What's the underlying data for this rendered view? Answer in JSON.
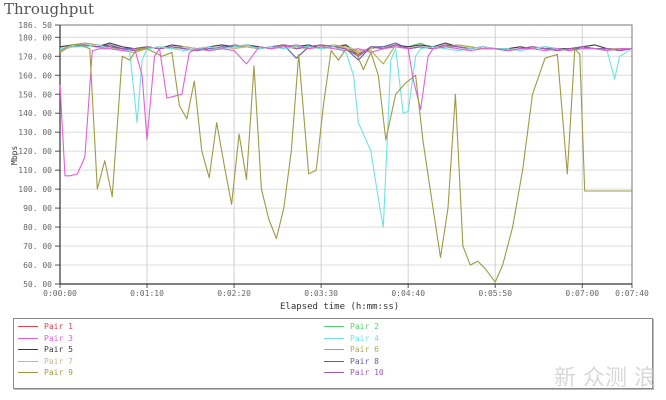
{
  "title": "Throughput",
  "watermark": "新 众测 浪",
  "chart_data": {
    "type": "line",
    "title": "Throughput",
    "xlabel": "Elapsed time (h:mm:ss)",
    "ylabel": "Mbps",
    "ylim": [
      50,
      186.5
    ],
    "xlim_seconds": [
      0,
      460
    ],
    "grid": true,
    "legend_position": "bottom",
    "y_ticks": [
      "186.50",
      "180.00",
      "170.00",
      "160.00",
      "150.00",
      "140.00",
      "130.00",
      "120.00",
      "110.00",
      "100.00",
      "90.00",
      "80.00",
      "70.00",
      "60.00",
      "50.00"
    ],
    "x_ticks": [
      {
        "label": "0:00:00",
        "t": 0
      },
      {
        "label": "0:01:10",
        "t": 70
      },
      {
        "label": "0:02:20",
        "t": 140
      },
      {
        "label": "0:03:30",
        "t": 210
      },
      {
        "label": "0:04:40",
        "t": 280
      },
      {
        "label": "0:05:50",
        "t": 350
      },
      {
        "label": "0:07:00",
        "t": 420
      },
      {
        "label": "0:07:40",
        "t": 460
      }
    ],
    "series": [
      {
        "name": "Pair 1",
        "color": "#d9434f",
        "t": [
          0,
          10,
          20,
          30,
          40,
          50,
          60,
          70,
          80,
          90,
          100,
          110,
          120,
          130,
          140,
          150,
          160,
          170,
          180,
          190,
          200,
          210,
          220,
          230,
          240,
          250,
          260,
          270,
          280,
          290,
          300,
          310,
          320,
          330,
          340,
          350,
          360,
          370,
          380,
          390,
          400,
          410,
          420,
          430,
          440,
          450,
          460
        ],
        "values": [
          174,
          175,
          176,
          175,
          176,
          174,
          173,
          175,
          174,
          175,
          174,
          173,
          175,
          174,
          176,
          175,
          174,
          175,
          176,
          174,
          175,
          176,
          175,
          174,
          171,
          175,
          174,
          176,
          174,
          175,
          174,
          176,
          175,
          174,
          175,
          174,
          173,
          174,
          175,
          174,
          173,
          174,
          175,
          174,
          174,
          173,
          174
        ]
      },
      {
        "name": "Pair 2",
        "color": "#55d66a",
        "t": [
          0,
          10,
          20,
          30,
          40,
          50,
          60,
          70,
          80,
          90,
          100,
          110,
          120,
          130,
          140,
          150,
          160,
          170,
          180,
          190,
          200,
          210,
          220,
          230,
          240,
          250,
          260,
          270,
          280,
          290,
          300,
          310,
          320,
          330,
          340,
          350,
          360,
          370,
          380,
          390,
          400,
          410,
          420,
          430,
          440,
          450,
          460
        ],
        "values": [
          173,
          176,
          177,
          176,
          175,
          174,
          173,
          174,
          175,
          174,
          175,
          174,
          173,
          174,
          175,
          176,
          175,
          174,
          175,
          176,
          175,
          174,
          175,
          176,
          172,
          174,
          175,
          176,
          175,
          177,
          174,
          175,
          176,
          175,
          174,
          174,
          173,
          174,
          175,
          174,
          174,
          173,
          175,
          174,
          174,
          174,
          174
        ]
      },
      {
        "name": "Pair 3",
        "color": "#e061d6",
        "t": [
          0,
          4,
          8,
          14,
          20,
          26,
          32,
          40,
          50,
          60,
          66,
          70,
          76,
          80,
          86,
          92,
          98,
          104,
          110,
          120,
          130,
          140,
          150,
          160,
          170,
          180,
          190,
          200,
          210,
          220,
          230,
          240,
          250,
          260,
          270,
          280,
          284,
          290,
          296,
          300,
          310,
          320,
          330,
          340,
          350,
          360,
          370,
          380,
          390,
          400,
          410,
          420,
          430,
          440,
          450,
          460
        ],
        "values": [
          155,
          107,
          107,
          108,
          117,
          173,
          174,
          174,
          173,
          174,
          160,
          126,
          170,
          174,
          148,
          149,
          150,
          172,
          174,
          173,
          174,
          173,
          166,
          175,
          174,
          175,
          176,
          174,
          175,
          174,
          173,
          174,
          172,
          174,
          175,
          174,
          158,
          142,
          170,
          174,
          175,
          174,
          173,
          174,
          174,
          173,
          174,
          174,
          173,
          174,
          173,
          174,
          174,
          173,
          174,
          174
        ]
      },
      {
        "name": "Pair 4",
        "color": "#6ee3e3",
        "t": [
          0,
          10,
          20,
          30,
          40,
          50,
          56,
          60,
          62,
          66,
          70,
          80,
          90,
          100,
          110,
          120,
          130,
          140,
          150,
          160,
          170,
          180,
          190,
          200,
          210,
          220,
          230,
          236,
          240,
          250,
          256,
          260,
          266,
          270,
          276,
          280,
          286,
          290,
          300,
          310,
          320,
          330,
          340,
          350,
          360,
          370,
          380,
          390,
          400,
          410,
          420,
          430,
          440,
          446,
          450,
          460
        ],
        "values": [
          174,
          175,
          175,
          176,
          174,
          173,
          173,
          148,
          135,
          168,
          174,
          175,
          174,
          173,
          174,
          175,
          174,
          175,
          176,
          174,
          175,
          174,
          175,
          175,
          174,
          175,
          172,
          160,
          135,
          120,
          95,
          80,
          168,
          174,
          140,
          141,
          170,
          174,
          175,
          174,
          173,
          174,
          175,
          174,
          174,
          173,
          174,
          175,
          174,
          173,
          174,
          174,
          173,
          158,
          170,
          174
        ]
      },
      {
        "name": "Pair 5",
        "color": "#3b3b3b",
        "t": [
          0,
          10,
          20,
          30,
          40,
          50,
          60,
          70,
          80,
          90,
          100,
          110,
          120,
          130,
          140,
          150,
          160,
          170,
          180,
          190,
          200,
          210,
          220,
          230,
          240,
          250,
          260,
          270,
          280,
          290,
          300,
          310,
          320,
          330,
          340,
          350,
          360,
          370,
          380,
          390,
          400,
          410,
          420,
          430,
          440,
          450,
          460
        ],
        "values": [
          175,
          176,
          176,
          175,
          177,
          175,
          174,
          175,
          174,
          176,
          175,
          174,
          175,
          176,
          175,
          176,
          175,
          174,
          176,
          175,
          176,
          174,
          175,
          176,
          170,
          175,
          174,
          176,
          175,
          176,
          175,
          177,
          175,
          174,
          175,
          174,
          174,
          175,
          174,
          175,
          174,
          174,
          175,
          176,
          174,
          174,
          174
        ]
      },
      {
        "name": "Pair 6",
        "color": "#b2a84e",
        "t": [
          0,
          10,
          20,
          30,
          40,
          50,
          60,
          70,
          80,
          90,
          100,
          110,
          120,
          130,
          140,
          150,
          160,
          170,
          180,
          190,
          200,
          210,
          220,
          230,
          240,
          250,
          260,
          270,
          280,
          290,
          300,
          310,
          320,
          330,
          340,
          350,
          360,
          370,
          380,
          390,
          400,
          410,
          420,
          430,
          440,
          450,
          460
        ],
        "values": [
          172,
          176,
          177,
          176,
          175,
          173,
          172,
          174,
          175,
          174,
          175,
          174,
          173,
          174,
          175,
          175,
          174,
          175,
          176,
          175,
          174,
          175,
          176,
          175,
          172,
          173,
          166,
          176,
          174,
          175,
          174,
          175,
          176,
          175,
          174,
          174,
          173,
          174,
          175,
          174,
          174,
          173,
          175,
          174,
          174,
          174,
          174
        ]
      },
      {
        "name": "Pair 7",
        "color": "#c9b68d",
        "t": [
          0,
          10,
          20,
          30,
          40,
          50,
          60,
          70,
          80,
          90,
          100,
          110,
          120,
          130,
          140,
          150,
          160,
          170,
          180,
          190,
          200,
          210,
          220,
          230,
          240,
          250,
          260,
          270,
          280,
          290,
          300,
          310,
          320,
          330,
          340,
          350,
          360,
          370,
          380,
          390,
          400,
          410,
          420,
          430,
          440,
          450,
          460
        ],
        "values": [
          173,
          175,
          176,
          175,
          174,
          174,
          173,
          174,
          175,
          174,
          175,
          174,
          173,
          175,
          174,
          175,
          174,
          175,
          175,
          174,
          175,
          174,
          175,
          175,
          173,
          174,
          175,
          176,
          174,
          175,
          174,
          175,
          175,
          174,
          175,
          174,
          173,
          174,
          175,
          174,
          174,
          173,
          175,
          174,
          174,
          174,
          174
        ]
      },
      {
        "name": "Pair 8",
        "color": "#5c5fa6",
        "t": [
          0,
          10,
          20,
          30,
          40,
          50,
          60,
          70,
          80,
          90,
          100,
          110,
          120,
          130,
          140,
          150,
          160,
          170,
          180,
          190,
          200,
          210,
          220,
          230,
          240,
          250,
          260,
          270,
          280,
          290,
          300,
          310,
          320,
          330,
          340,
          350,
          360,
          370,
          380,
          390,
          400,
          410,
          420,
          430,
          440,
          450,
          460
        ],
        "values": [
          174,
          175,
          176,
          175,
          176,
          174,
          174,
          175,
          174,
          175,
          174,
          173,
          174,
          175,
          175,
          176,
          174,
          175,
          176,
          169,
          175,
          176,
          175,
          174,
          168,
          175,
          175,
          177,
          174,
          175,
          174,
          176,
          175,
          174,
          175,
          174,
          173,
          174,
          175,
          174,
          174,
          173,
          175,
          174,
          174,
          173,
          174
        ]
      },
      {
        "name": "Pair 9",
        "color": "#9e9a45",
        "t": [
          0,
          8,
          16,
          24,
          30,
          36,
          42,
          50,
          56,
          62,
          70,
          76,
          82,
          90,
          96,
          102,
          108,
          114,
          120,
          126,
          132,
          138,
          144,
          150,
          156,
          162,
          168,
          174,
          180,
          186,
          192,
          200,
          206,
          212,
          218,
          224,
          230,
          238,
          244,
          250,
          256,
          262,
          270,
          278,
          286,
          292,
          300,
          306,
          312,
          318,
          324,
          330,
          336,
          342,
          350,
          356,
          364,
          372,
          380,
          390,
          400,
          408,
          414,
          418,
          422,
          426,
          430,
          436,
          440,
          444,
          450,
          460
        ],
        "values": [
          172,
          176,
          176,
          174,
          100,
          115,
          96,
          170,
          168,
          174,
          174,
          172,
          170,
          172,
          144,
          137,
          157,
          120,
          106,
          135,
          113,
          92,
          129,
          105,
          165,
          100,
          84,
          74,
          90,
          120,
          171,
          108,
          110,
          145,
          173,
          168,
          174,
          172,
          163,
          172,
          160,
          126,
          150,
          156,
          160,
          125,
          90,
          64,
          90,
          150,
          70,
          60,
          62,
          58,
          51,
          60,
          80,
          110,
          150,
          169,
          171,
          108,
          174,
          171,
          99,
          99,
          99,
          99,
          99,
          99,
          99,
          99
        ]
      },
      {
        "name": "Pair 10",
        "color": "#9c5cb3",
        "t": [
          0,
          10,
          20,
          30,
          40,
          50,
          60,
          70,
          80,
          90,
          100,
          110,
          120,
          130,
          140,
          150,
          160,
          170,
          180,
          190,
          200,
          210,
          220,
          230,
          240,
          250,
          260,
          270,
          280,
          290,
          300,
          310,
          320,
          330,
          340,
          350,
          360,
          370,
          380,
          390,
          400,
          410,
          420,
          430,
          440,
          450,
          460
        ],
        "values": [
          174,
          175,
          176,
          175,
          175,
          174,
          173,
          175,
          174,
          175,
          174,
          173,
          175,
          174,
          175,
          176,
          174,
          175,
          176,
          174,
          175,
          176,
          175,
          174,
          170,
          175,
          174,
          176,
          174,
          175,
          174,
          176,
          175,
          174,
          175,
          174,
          173,
          174,
          175,
          174,
          173,
          174,
          175,
          174,
          174,
          173,
          174
        ]
      }
    ]
  },
  "legend": {
    "left": [
      {
        "label": "Pair 1",
        "color": "#d9434f"
      },
      {
        "label": "Pair 3",
        "color": "#e061d6"
      },
      {
        "label": "Pair 5",
        "color": "#3b3b3b"
      },
      {
        "label": "Pair 7",
        "color": "#c9b68d"
      },
      {
        "label": "Pair 9",
        "color": "#9e9a45"
      }
    ],
    "right": [
      {
        "label": "Pair 2",
        "color": "#55d66a"
      },
      {
        "label": "Pair 4",
        "color": "#6ee3e3"
      },
      {
        "label": "Pair 6",
        "color": "#b2a84e"
      },
      {
        "label": "Pair 8",
        "color": "#5c5fa6"
      },
      {
        "label": "Pair 10",
        "color": "#9c5cb3"
      }
    ]
  }
}
